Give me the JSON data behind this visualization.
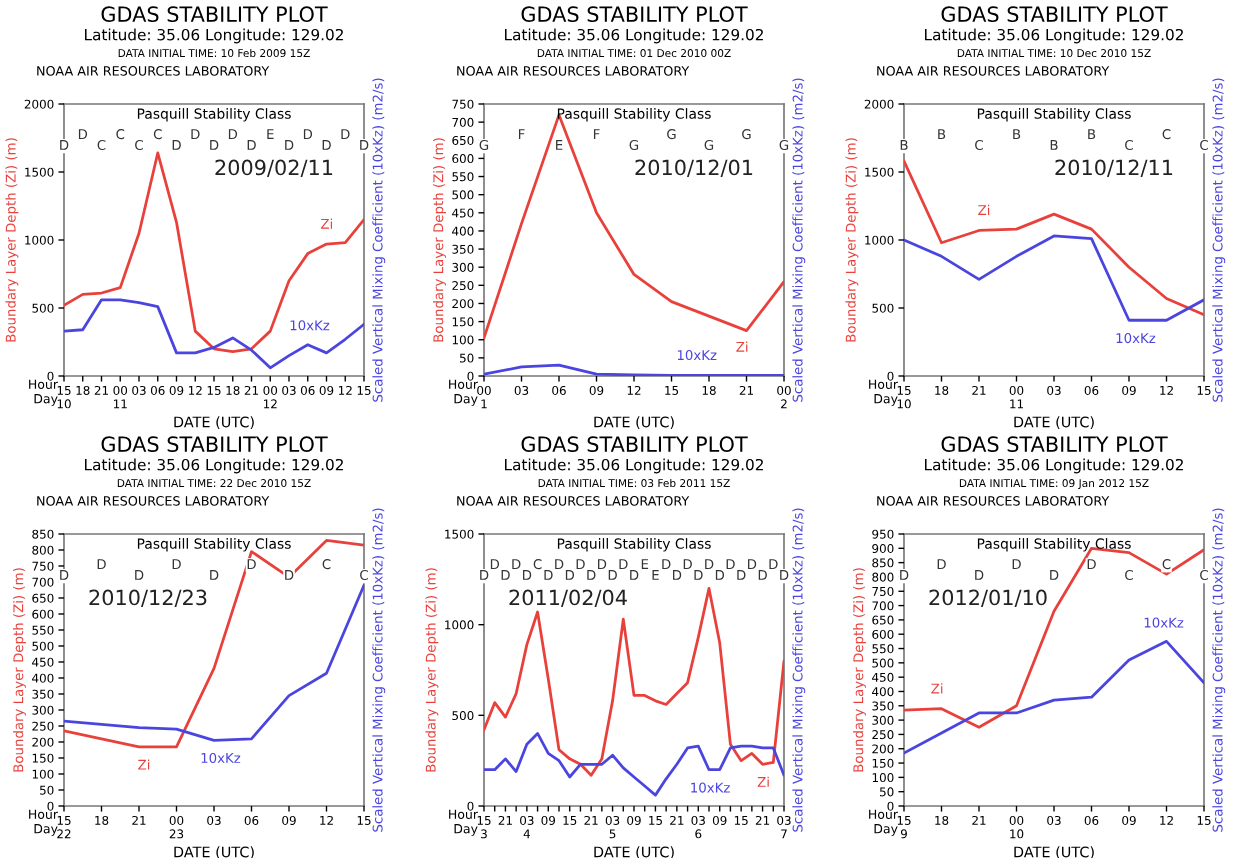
{
  "chart_data": [
    {
      "type": "line",
      "title": "GDAS STABILITY PLOT",
      "subtitle": "Latitude: 35.06 Longitude: 129.02",
      "xlabel": "DATE (UTC)",
      "ylabel": "Boundary Layer Depth (Zi) (m)",
      "y2label": "Scaled Vertical Mixing Coefficient (10xKz) (m2/s)",
      "legend": false,
      "grid": false,
      "marker": "none",
      "line_style": "solid",
      "categories": [
        "15\n10",
        "18",
        "21",
        "00\n11",
        "03",
        "06",
        "09",
        "12",
        "15",
        "18",
        "21",
        "00\n12",
        "03",
        "06",
        "09",
        "12",
        "15"
      ],
      "ylim": [
        0,
        2000
      ],
      "yticks": [
        0,
        500,
        1000,
        1500,
        2000
      ],
      "series": [
        {
          "name": "Zi",
          "color": "#e8413c",
          "values": [
            520,
            600,
            610,
            650,
            1050,
            1640,
            1130,
            330,
            200,
            180,
            200,
            330,
            700,
            900,
            970,
            980,
            1150
          ]
        },
        {
          "name": "10xKz",
          "color": "#4b45e0",
          "values": [
            330,
            340,
            560,
            560,
            540,
            510,
            170,
            170,
            210,
            280,
            190,
            60,
            150,
            230,
            170,
            270,
            380
          ]
        }
      ],
      "annotations": [
        "DATA INITIAL TIME: 10 Feb 2009 15Z",
        "NOAA AIR RESOURCES LABORATORY",
        "Pasquill Stability Class",
        "Hour\nDay",
        "2009/02/11",
        "D",
        "D",
        "C",
        "C",
        "C",
        "C",
        "D",
        "D",
        "D",
        "D",
        "D",
        "E",
        "D",
        "D",
        "D",
        "D",
        "D"
      ]
    },
    {
      "type": "line",
      "title": "GDAS STABILITY PLOT",
      "subtitle": "Latitude: 35.06 Longitude: 129.02",
      "xlabel": "DATE (UTC)",
      "ylabel": "Boundary Layer Depth (Zi) (m)",
      "y2label": "Scaled Vertical Mixing Coefficient (10xKz) (m2/s)",
      "legend": false,
      "grid": false,
      "marker": "none",
      "line_style": "solid",
      "categories": [
        "00\n1",
        "03",
        "06",
        "09",
        "12",
        "15",
        "18",
        "21",
        "00\n2"
      ],
      "ylim": [
        0,
        750
      ],
      "yticks": [
        0,
        50,
        100,
        150,
        200,
        250,
        300,
        350,
        400,
        450,
        500,
        550,
        600,
        650,
        700,
        750
      ],
      "series": [
        {
          "name": "Zi",
          "color": "#e8413c",
          "values": [
            105,
            420,
            720,
            450,
            280,
            205,
            165,
            125,
            260
          ]
        },
        {
          "name": "10xKz",
          "color": "#4b45e0",
          "values": [
            5,
            25,
            30,
            5,
            3,
            2,
            2,
            2,
            2
          ]
        }
      ],
      "annotations": [
        "DATA INITIAL TIME: 01 Dec 2010 00Z",
        "NOAA AIR RESOURCES LABORATORY",
        "Pasquill Stability Class",
        "Hour\nDay",
        "2010/12/01",
        "G",
        "F",
        "E",
        "F",
        "G",
        "G",
        "G",
        "G",
        "G"
      ]
    },
    {
      "type": "line",
      "title": "GDAS STABILITY PLOT",
      "subtitle": "Latitude: 35.06 Longitude: 129.02",
      "xlabel": "DATE (UTC)",
      "ylabel": "Boundary Layer Depth (Zi) (m)",
      "y2label": "Scaled Vertical Mixing Coefficient (10xKz) (m2/s)",
      "legend": false,
      "grid": false,
      "marker": "none",
      "line_style": "solid",
      "categories": [
        "15\n10",
        "18",
        "21",
        "00\n11",
        "03",
        "06",
        "09",
        "12",
        "15"
      ],
      "ylim": [
        0,
        2000
      ],
      "yticks": [
        0,
        500,
        1000,
        1500,
        2000
      ],
      "series": [
        {
          "name": "Zi",
          "color": "#e8413c",
          "values": [
            1580,
            980,
            1070,
            1080,
            1190,
            1080,
            800,
            570,
            450
          ]
        },
        {
          "name": "10xKz",
          "color": "#4b45e0",
          "values": [
            1000,
            880,
            710,
            880,
            1030,
            1010,
            410,
            410,
            560
          ]
        }
      ],
      "annotations": [
        "DATA INITIAL TIME: 10 Dec 2010 15Z",
        "NOAA AIR RESOURCES LABORATORY",
        "Pasquill Stability Class",
        "Hour\nDay",
        "2010/12/11",
        "B",
        "B",
        "C",
        "B",
        "B",
        "B",
        "C",
        "C",
        "C"
      ]
    },
    {
      "type": "line",
      "title": "GDAS STABILITY PLOT",
      "subtitle": "Latitude: 35.06 Longitude: 129.02",
      "xlabel": "DATE (UTC)",
      "ylabel": "Boundary Layer Depth (Zi) (m)",
      "y2label": "Scaled Vertical Mixing Coefficient (10xKz) (m2/s)",
      "legend": false,
      "grid": false,
      "marker": "none",
      "line_style": "solid",
      "categories": [
        "15\n22",
        "18",
        "21",
        "00\n23",
        "03",
        "06",
        "09",
        "12",
        "15"
      ],
      "ylim": [
        0,
        850
      ],
      "yticks": [
        0,
        50,
        100,
        150,
        200,
        250,
        300,
        350,
        400,
        450,
        500,
        550,
        600,
        650,
        700,
        750,
        800,
        850
      ],
      "series": [
        {
          "name": "Zi",
          "color": "#e8413c",
          "values": [
            235,
            210,
            185,
            185,
            430,
            795,
            715,
            830,
            815
          ]
        },
        {
          "name": "10xKz",
          "color": "#4b45e0",
          "values": [
            265,
            255,
            245,
            240,
            205,
            210,
            345,
            415,
            690
          ]
        }
      ],
      "annotations": [
        "DATA INITIAL TIME: 22 Dec 2010 15Z",
        "NOAA AIR RESOURCES LABORATORY",
        "Pasquill Stability Class",
        "Hour\nDay",
        "2010/12/23",
        "D",
        "D",
        "D",
        "D",
        "D",
        "D",
        "D",
        "C",
        "C"
      ]
    },
    {
      "type": "line",
      "title": "GDAS STABILITY PLOT",
      "subtitle": "Latitude: 35.06 Longitude: 129.02",
      "xlabel": "DATE (UTC)",
      "ylabel": "Boundary Layer Depth (Zi) (m)",
      "y2label": "Scaled Vertical Mixing Coefficient (10xKz) (m2/s)",
      "legend": false,
      "grid": false,
      "marker": "none",
      "line_style": "solid",
      "categories": [
        "15\n3",
        null,
        "21",
        null,
        "03\n4",
        null,
        "09",
        null,
        "15",
        null,
        "21",
        null,
        "03\n5",
        null,
        "09",
        null,
        "15",
        null,
        "21",
        null,
        "03\n6",
        null,
        "09",
        null,
        "15",
        null,
        "21",
        null,
        "03\n7"
      ],
      "ylim": [
        0,
        1500
      ],
      "yticks": [
        0,
        500,
        1000,
        1500
      ],
      "series": [
        {
          "name": "Zi",
          "color": "#e8413c",
          "values": [
            420,
            570,
            490,
            620,
            890,
            1070,
            700,
            310,
            260,
            230,
            170,
            260,
            580,
            1030,
            610,
            610,
            580,
            560,
            620,
            680,
            930,
            1200,
            900,
            340,
            250,
            290,
            230,
            240,
            800
          ]
        },
        {
          "name": "10xKz",
          "color": "#4b45e0",
          "values": [
            200,
            200,
            260,
            190,
            340,
            400,
            290,
            250,
            160,
            230,
            230,
            230,
            280,
            210,
            160,
            110,
            60,
            150,
            230,
            320,
            330,
            200,
            200,
            320,
            330,
            330,
            320,
            320,
            170
          ]
        }
      ],
      "annotations": [
        "DATA INITIAL TIME: 03 Feb 2011 15Z",
        "NOAA AIR RESOURCES LABORATORY",
        "Pasquill Stability Class",
        "Hour\nDay",
        "2011/02/04",
        "D",
        "D",
        "D",
        "D",
        "D",
        "C",
        "D",
        "D",
        "D",
        "D",
        "D",
        "D",
        "D",
        "D",
        "D",
        "E",
        "E",
        "D",
        "D",
        "D",
        "D",
        "D",
        "D",
        "D",
        "D",
        "D",
        "D",
        "D",
        "D"
      ]
    },
    {
      "type": "line",
      "title": "GDAS STABILITY PLOT",
      "subtitle": "Latitude: 35.06 Longitude: 129.02",
      "xlabel": "DATE (UTC)",
      "ylabel": "Boundary Layer Depth (Zi) (m)",
      "y2label": "Scaled Vertical Mixing Coefficient (10xKz) (m2/s)",
      "legend": false,
      "grid": false,
      "marker": "none",
      "line_style": "solid",
      "categories": [
        "15\n9",
        "18",
        "21",
        "00\n10",
        "03",
        "06",
        "09",
        "12",
        "15"
      ],
      "ylim": [
        0,
        950
      ],
      "yticks": [
        0,
        50,
        100,
        150,
        200,
        250,
        300,
        350,
        400,
        450,
        500,
        550,
        600,
        650,
        700,
        750,
        800,
        850,
        900,
        950
      ],
      "series": [
        {
          "name": "Zi",
          "color": "#e8413c",
          "values": [
            335,
            340,
            275,
            350,
            680,
            900,
            885,
            810,
            895
          ]
        },
        {
          "name": "10xKz",
          "color": "#4b45e0",
          "values": [
            185,
            255,
            325,
            325,
            370,
            380,
            510,
            575,
            430
          ]
        }
      ],
      "annotations": [
        "DATA INITIAL TIME: 09 Jan 2012 15Z",
        "NOAA AIR RESOURCES LABORATORY",
        "Pasquill Stability Class",
        "Hour\nDay",
        "2012/01/10",
        "D",
        "D",
        "D",
        "D",
        "D",
        "D",
        "C",
        "C",
        "C"
      ]
    }
  ]
}
